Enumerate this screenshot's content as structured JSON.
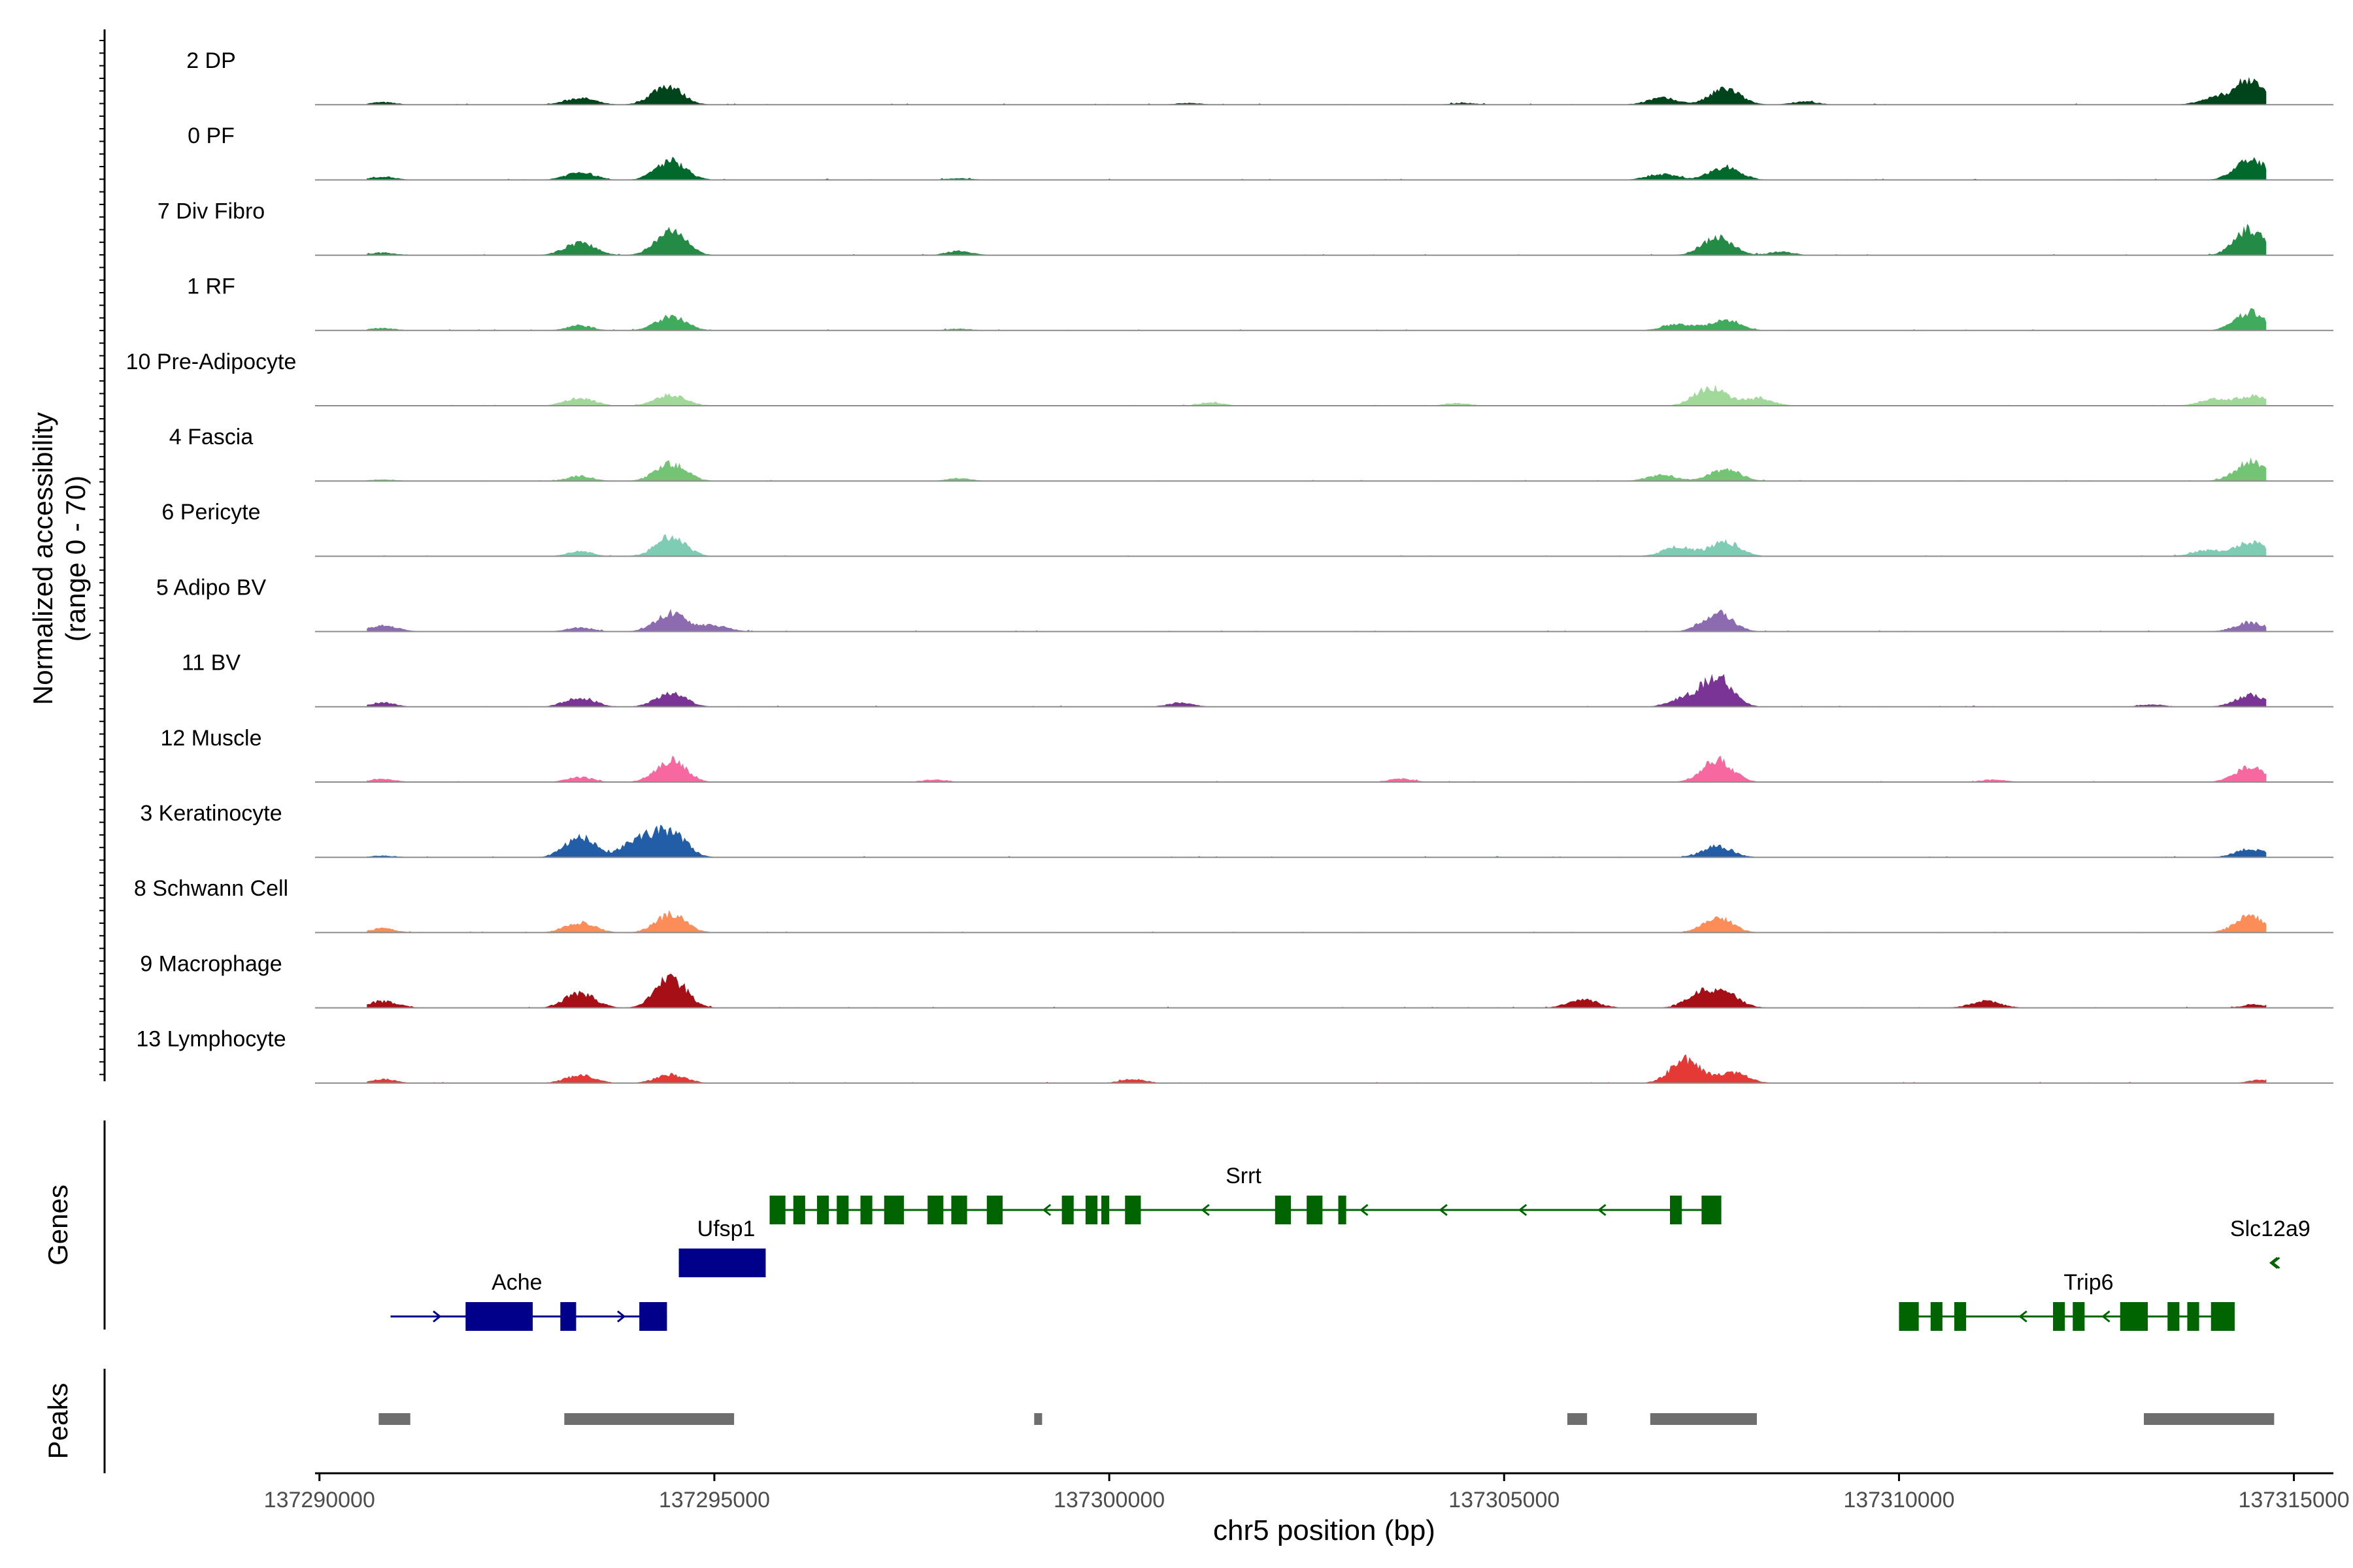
{
  "chart_data": {
    "type": "area",
    "title": "",
    "ylabel_line1": "Normalized accessibility",
    "ylabel_line2": "(range 0 - 70)",
    "xlabel": "chr5 position (bp)",
    "xlim": [
      137289944,
      137315500
    ],
    "x_ticks": [
      137290000,
      137295000,
      137300000,
      137305000,
      137310000,
      137315000
    ],
    "x_tick_labels": [
      "137290000",
      "137295000",
      "137300000",
      "137305000",
      "137310000",
      "137315000"
    ],
    "ylim": [
      0,
      70
    ],
    "genes_label": "Genes",
    "peaks_label": "Peaks",
    "baseline_color": "#8c8c8c",
    "tracks": [
      {
        "name": "2 DP",
        "color": "#00441b",
        "values": [
          [
            137290800,
            3
          ],
          [
            137293300,
            8
          ],
          [
            137294400,
            23
          ],
          [
            137301000,
            2
          ],
          [
            137304500,
            2
          ],
          [
            137307000,
            8
          ],
          [
            137307800,
            19
          ],
          [
            137308800,
            4
          ],
          [
            137314000,
            8
          ],
          [
            137314450,
            30
          ]
        ]
      },
      {
        "name": "0 PF",
        "color": "#00692b",
        "values": [
          [
            137290800,
            4
          ],
          [
            137293300,
            9
          ],
          [
            137294450,
            23
          ],
          [
            137298100,
            2
          ],
          [
            137307000,
            7
          ],
          [
            137307800,
            16
          ],
          [
            137314450,
            25
          ]
        ]
      },
      {
        "name": "7 Div Fibro",
        "color": "#238b45",
        "values": [
          [
            137290800,
            3
          ],
          [
            137293300,
            15
          ],
          [
            137294450,
            29
          ],
          [
            137298100,
            5
          ],
          [
            137307700,
            22
          ],
          [
            137308500,
            4
          ],
          [
            137314450,
            31
          ]
        ]
      },
      {
        "name": "1 RF",
        "color": "#41ab5d",
        "values": [
          [
            137290800,
            3
          ],
          [
            137293300,
            6
          ],
          [
            137294450,
            17
          ],
          [
            137298100,
            2
          ],
          [
            137307200,
            8
          ],
          [
            137307800,
            13
          ],
          [
            137314450,
            22
          ]
        ]
      },
      {
        "name": "10 Pre-Adipocyte",
        "color": "#a1d99b",
        "values": [
          [
            137293300,
            9
          ],
          [
            137294450,
            13
          ],
          [
            137301300,
            4
          ],
          [
            137304400,
            3
          ],
          [
            137307600,
            22
          ],
          [
            137308200,
            9
          ],
          [
            137314000,
            8
          ],
          [
            137314500,
            12
          ]
        ]
      },
      {
        "name": "4 Fascia",
        "color": "#74c476",
        "values": [
          [
            137290800,
            2
          ],
          [
            137293300,
            6
          ],
          [
            137294450,
            21
          ],
          [
            137298100,
            3
          ],
          [
            137307000,
            7
          ],
          [
            137307800,
            14
          ],
          [
            137314450,
            23
          ]
        ]
      },
      {
        "name": "6 Pericyte",
        "color": "#7fccb4",
        "values": [
          [
            137293300,
            6
          ],
          [
            137294450,
            23
          ],
          [
            137307200,
            11
          ],
          [
            137307800,
            17
          ],
          [
            137313900,
            7
          ],
          [
            137314450,
            17
          ]
        ]
      },
      {
        "name": "5 Adipo BV",
        "color": "#8c6bb1",
        "values": [
          [
            137290800,
            7
          ],
          [
            137293300,
            5
          ],
          [
            137294450,
            22
          ],
          [
            137295000,
            7
          ],
          [
            137307700,
            22
          ],
          [
            137314450,
            11
          ]
        ]
      },
      {
        "name": "11 BV",
        "color": "#7a3495",
        "values": [
          [
            137290800,
            5
          ],
          [
            137293300,
            11
          ],
          [
            137294450,
            16
          ],
          [
            137300900,
            5
          ],
          [
            137307300,
            10
          ],
          [
            137307700,
            35
          ],
          [
            137313200,
            3
          ],
          [
            137314450,
            14
          ]
        ]
      },
      {
        "name": "12 Muscle",
        "color": "#f768a1",
        "values": [
          [
            137290800,
            4
          ],
          [
            137293300,
            6
          ],
          [
            137294450,
            26
          ],
          [
            137297800,
            3
          ],
          [
            137303700,
            4
          ],
          [
            137307700,
            26
          ],
          [
            137311200,
            3
          ],
          [
            137314450,
            18
          ]
        ]
      },
      {
        "name": "3 Keratinocyte",
        "color": "#225ea8",
        "values": [
          [
            137290800,
            2
          ],
          [
            137293300,
            24
          ],
          [
            137294050,
            23
          ],
          [
            137294450,
            30
          ],
          [
            137307700,
            13
          ],
          [
            137314450,
            10
          ]
        ]
      },
      {
        "name": "8 Schwann Cell",
        "color": "#fc8d59",
        "values": [
          [
            137290800,
            5
          ],
          [
            137293300,
            12
          ],
          [
            137294450,
            22
          ],
          [
            137307700,
            18
          ],
          [
            137314450,
            20
          ]
        ]
      },
      {
        "name": "9 Macrophage",
        "color": "#a50f15",
        "values": [
          [
            137290800,
            8
          ],
          [
            137293300,
            18
          ],
          [
            137294450,
            36
          ],
          [
            137306000,
            10
          ],
          [
            137307500,
            16
          ],
          [
            137307800,
            15
          ],
          [
            137311100,
            8
          ],
          [
            137314500,
            4
          ]
        ]
      },
      {
        "name": "13 Lymphocyte",
        "color": "#e53935",
        "values": [
          [
            137290800,
            5
          ],
          [
            137293300,
            9
          ],
          [
            137294450,
            10
          ],
          [
            137300300,
            5
          ],
          [
            137307300,
            28
          ],
          [
            137307900,
            12
          ],
          [
            137314600,
            4
          ]
        ]
      }
    ],
    "genes": [
      {
        "name": "Srrt",
        "strand": "-",
        "color": "#006400",
        "start": 137295700,
        "end": 137307750,
        "label_x": 137301700,
        "exons": [
          [
            137295700,
            137295900
          ],
          [
            137296000,
            137296150
          ],
          [
            137296300,
            137296450
          ],
          [
            137296550,
            137296700
          ],
          [
            137296850,
            137297000
          ],
          [
            137297150,
            137297400
          ],
          [
            137297700,
            137297900
          ],
          [
            137298000,
            137298150
          ],
          [
            137298150,
            137298200
          ],
          [
            137298450,
            137298650
          ],
          [
            137299400,
            137299550
          ],
          [
            137299700,
            137299850
          ],
          [
            137299900,
            137300000
          ],
          [
            137300200,
            137300400
          ],
          [
            137302100,
            137302300
          ],
          [
            137302500,
            137302700
          ],
          [
            137302900,
            137303000
          ],
          [
            137307100,
            137307250
          ],
          [
            137307500,
            137307750
          ]
        ]
      },
      {
        "name": "Ufsp1",
        "strand": "-",
        "color": "#00008b",
        "start": 137294550,
        "end": 137295650,
        "label_x": 137295150,
        "exons": [
          [
            137294550,
            137295650
          ]
        ]
      },
      {
        "name": "Ache",
        "strand": "+",
        "color": "#00008b",
        "start": 137290900,
        "end": 137294400,
        "label_x": 137292500,
        "exons": [
          [
            137291850,
            137292700
          ],
          [
            137293050,
            137293250
          ],
          [
            137294050,
            137294400
          ]
        ]
      },
      {
        "name": "Trip6",
        "strand": "-",
        "color": "#006400",
        "start": 137310000,
        "end": 137314200,
        "label_x": 137312400,
        "exons": [
          [
            137310000,
            137310250
          ],
          [
            137310400,
            137310550
          ],
          [
            137310700,
            137310850
          ],
          [
            137311950,
            137312100
          ],
          [
            137312200,
            137312350
          ],
          [
            137312800,
            137313150
          ],
          [
            137313400,
            137313550
          ],
          [
            137313650,
            137313800
          ],
          [
            137313950,
            137314250
          ]
        ]
      },
      {
        "name": "Slc12a9",
        "strand": "-",
        "color": "#006400",
        "start": 137314750,
        "end": 137314800,
        "label_x": 137314700,
        "exons": []
      }
    ],
    "peaks": [
      [
        137290750,
        137291150
      ],
      [
        137293100,
        137295250
      ],
      [
        137299050,
        137299150
      ],
      [
        137305800,
        137306050
      ],
      [
        137306850,
        137308200
      ],
      [
        137313100,
        137314750
      ]
    ]
  }
}
